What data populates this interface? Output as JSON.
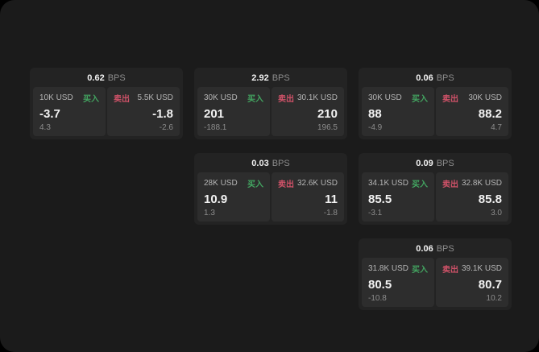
{
  "labels": {
    "buy": "买入",
    "sell": "卖出",
    "bps_unit": "BPS"
  },
  "colors": {
    "outer_bg": "#000000",
    "page_bg": "#1b1b1b",
    "card_bg": "#232323",
    "panel_bg": "#2d2d2d",
    "text_primary": "#f2f2f2",
    "text_secondary": "#b5b5b5",
    "text_muted": "#8c8c8c",
    "buy_green": "#43a561",
    "sell_red": "#cf5268"
  },
  "cards": [
    {
      "bps": "0.62",
      "row": 1,
      "col": 1,
      "buy": {
        "amount": "10K USD",
        "value": "-3.7",
        "sub": "4.3"
      },
      "sell": {
        "amount": "5.5K USD",
        "value": "-1.8",
        "sub": "-2.6"
      }
    },
    {
      "bps": "2.92",
      "row": 1,
      "col": 2,
      "buy": {
        "amount": "30K USD",
        "value": "201",
        "sub": "-188.1"
      },
      "sell": {
        "amount": "30.1K USD",
        "value": "210",
        "sub": "196.5"
      }
    },
    {
      "bps": "0.06",
      "row": 1,
      "col": 3,
      "buy": {
        "amount": "30K USD",
        "value": "88",
        "sub": "-4.9"
      },
      "sell": {
        "amount": "30K USD",
        "value": "88.2",
        "sub": "4.7"
      }
    },
    {
      "bps": "0.03",
      "row": 2,
      "col": 2,
      "buy": {
        "amount": "28K USD",
        "value": "10.9",
        "sub": "1.3"
      },
      "sell": {
        "amount": "32.6K USD",
        "value": "11",
        "sub": "-1.8"
      }
    },
    {
      "bps": "0.09",
      "row": 2,
      "col": 3,
      "buy": {
        "amount": "34.1K USD",
        "value": "85.5",
        "sub": "-3.1"
      },
      "sell": {
        "amount": "32.8K USD",
        "value": "85.8",
        "sub": "3.0"
      }
    },
    {
      "bps": "0.06",
      "row": 3,
      "col": 3,
      "buy": {
        "amount": "31.8K USD",
        "value": "80.5",
        "sub": "-10.8"
      },
      "sell": {
        "amount": "39.1K USD",
        "value": "80.7",
        "sub": "10.2"
      }
    }
  ]
}
